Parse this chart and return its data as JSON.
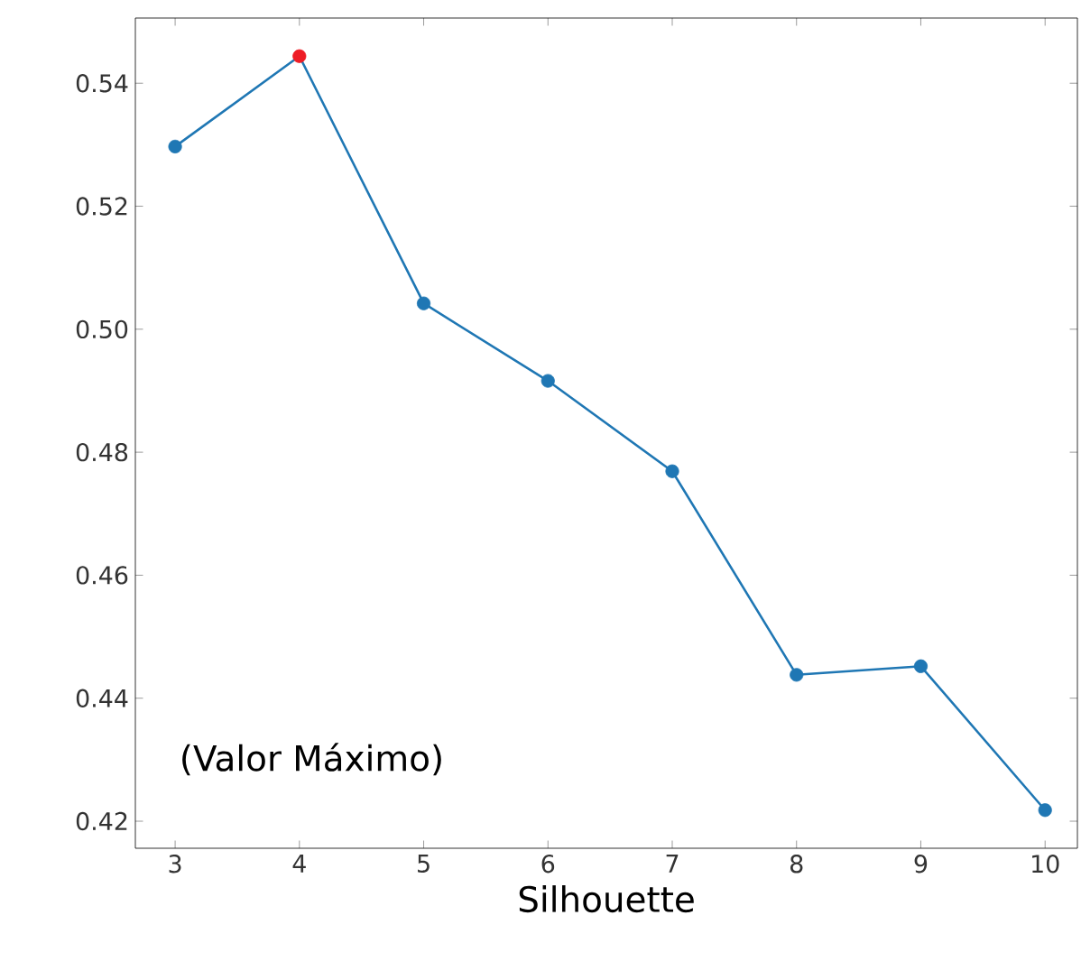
{
  "chart_data": {
    "type": "line",
    "xlabel": "Silhouette",
    "x": [
      3,
      4,
      5,
      6,
      7,
      8,
      9,
      10
    ],
    "series": [
      {
        "color": "#1f77b4",
        "colors": [
          "#1f77b4",
          "#ee1c25",
          "#1f77b4",
          "#1f77b4",
          "#1f77b4",
          "#1f77b4",
          "#1f77b4",
          "#1f77b4"
        ],
        "values": [
          0.5297,
          0.5444,
          0.5042,
          0.4916,
          0.4769,
          0.4438,
          0.4452,
          0.4218
        ]
      }
    ],
    "marker": "circle",
    "xlim": [
      2.68,
      10.26
    ],
    "ylim": [
      0.4156,
      0.5506
    ],
    "xticks": [
      3,
      4,
      5,
      6,
      7,
      8,
      9,
      10
    ],
    "yticks": [
      0.42,
      0.44,
      0.46,
      0.48,
      {
        "value": 0.5,
        "label": "0.50"
      },
      0.52,
      0.54
    ],
    "annotations": [
      "(Valor Máximo)"
    ]
  }
}
